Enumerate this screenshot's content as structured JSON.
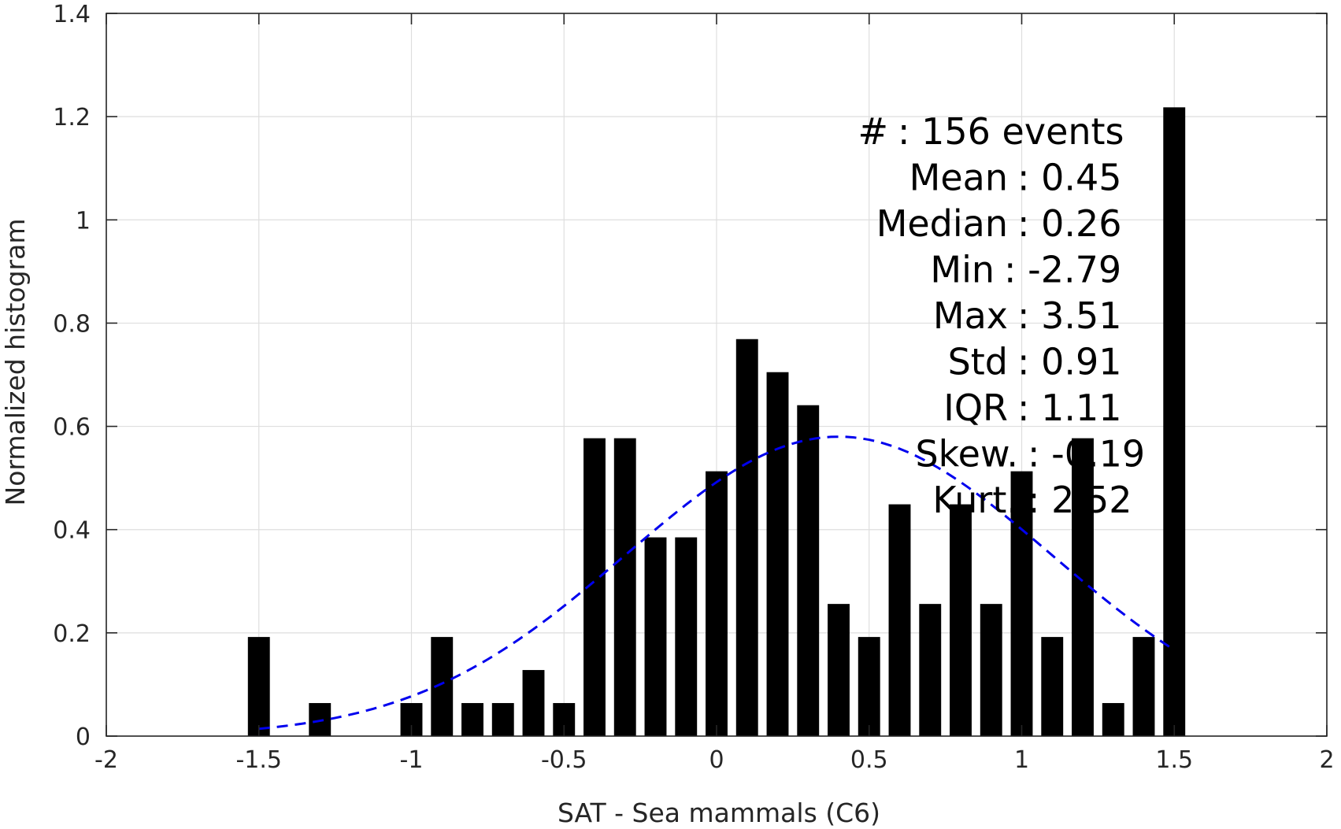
{
  "chart_data": {
    "type": "bar",
    "xlabel": "SAT - Sea mammals  (C6)",
    "ylabel": "Normalized histogram",
    "xlim": [
      -2,
      2
    ],
    "ylim": [
      0,
      1.4
    ],
    "xticks": [
      -2,
      -1.5,
      -1,
      -0.5,
      0,
      0.5,
      1,
      1.5,
      2
    ],
    "xtick_labels": [
      "-2",
      "-1.5",
      "-1",
      "-0.5",
      "0",
      "0.5",
      "1",
      "1.5",
      "2"
    ],
    "yticks": [
      0,
      0.2,
      0.4,
      0.6,
      0.8,
      1,
      1.2,
      1.4
    ],
    "ytick_labels": [
      "0",
      "0.2",
      "0.4",
      "0.6",
      "0.8",
      "1",
      "1.2",
      "1.4"
    ],
    "grid": true,
    "bar_color": "#000000",
    "bin_width": 0.1,
    "bars": {
      "x": [
        -1.5,
        -1.3,
        -1.0,
        -0.9,
        -0.8,
        -0.7,
        -0.6,
        -0.5,
        -0.4,
        -0.3,
        -0.2,
        -0.1,
        0.0,
        0.1,
        0.2,
        0.3,
        0.4,
        0.5,
        0.6,
        0.7,
        0.8,
        0.9,
        1.0,
        1.1,
        1.2,
        1.3,
        1.4,
        1.5
      ],
      "values": [
        0.192,
        0.064,
        0.064,
        0.192,
        0.064,
        0.064,
        0.128,
        0.064,
        0.577,
        0.577,
        0.385,
        0.385,
        0.513,
        0.769,
        0.705,
        0.641,
        0.256,
        0.192,
        0.449,
        0.256,
        0.449,
        0.256,
        0.513,
        0.192,
        0.577,
        0.064,
        0.192,
        1.218
      ]
    },
    "fit_curve": {
      "style": "dashed",
      "color": "#0000ee",
      "x_range": [
        -1.5,
        1.5
      ],
      "peak_x": 0.4,
      "peak_y": 0.58,
      "sigma": 0.697
    },
    "annotations": [
      "#  : 156 events",
      "Mean : 0.45",
      "Median : 0.26",
      "Min : -2.79",
      "Max : 3.51",
      "Std : 0.91",
      "IQR : 1.11",
      "Skew. : -0.19",
      "Kurt. : 2.52"
    ]
  }
}
